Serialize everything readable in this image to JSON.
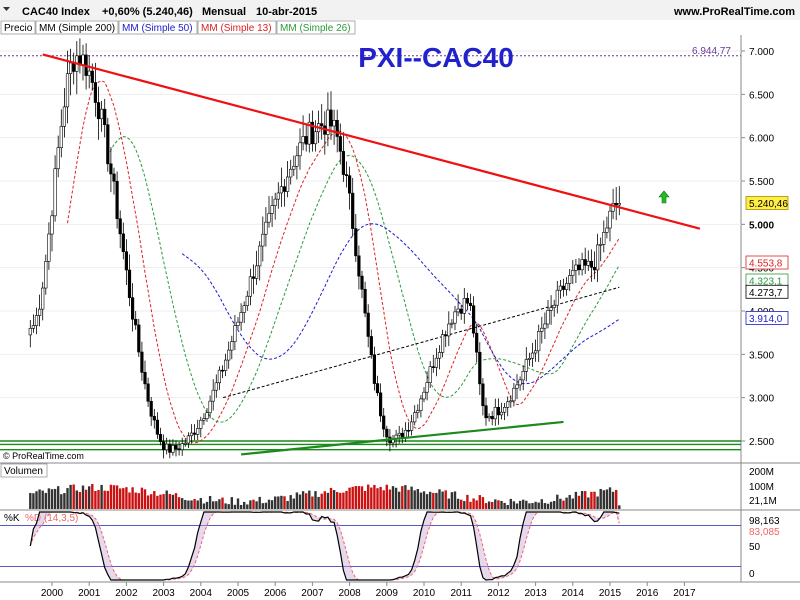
{
  "header": {
    "symbol": "CAC40 Index",
    "change": "+0,60% (5.240,46)",
    "period": "Mensual",
    "date": "10-abr-2015",
    "website": "www.ProRealTime.com",
    "watermark": "PXI--CAC40",
    "copyright": "© ProRealTime.com"
  },
  "legend": {
    "price": "Precio",
    "items": [
      {
        "label": "MM (Simple 200)",
        "color": "#000000"
      },
      {
        "label": "MM (Simple 50)",
        "color": "#1c1ccc"
      },
      {
        "label": "MM (Simple 13)",
        "color": "#dd2222"
      },
      {
        "label": "MM (Simple 26)",
        "color": "#2a9a3a"
      }
    ]
  },
  "colors": {
    "up": "#2a7a2a",
    "down": "#d01010",
    "ma200": "#000000",
    "ma50": "#1c1ccc",
    "ma13": "#dd2222",
    "ma26": "#2a9a3a",
    "trendline": "#ee1111",
    "support": "#1a8a1a",
    "watermark": "#2222cc"
  },
  "chart_data": [
    {
      "type": "candlestick",
      "title": "PXI--CAC40",
      "x_ticks": [
        "2000",
        "2001",
        "2002",
        "2003",
        "2004",
        "2005",
        "2006",
        "2007",
        "2008",
        "2009",
        "2010",
        "2011",
        "2012",
        "2013",
        "2014",
        "2015",
        "2016",
        "2017"
      ],
      "y_ticks": [
        "7.000",
        "6.500",
        "6.000",
        "5.500",
        "5.000",
        "4.500",
        "4.000",
        "3.500",
        "3.000",
        "2.500"
      ],
      "ylim": [
        2400,
        7200
      ],
      "key_points": [
        {
          "date": "1999-06",
          "close": 3800
        },
        {
          "date": "2000-09",
          "close": 6944.77
        },
        {
          "date": "2003-03",
          "close": 2400
        },
        {
          "date": "2007-06",
          "close": 6168
        },
        {
          "date": "2009-03",
          "close": 2519
        },
        {
          "date": "2011-03",
          "close": 4100
        },
        {
          "date": "2011-09",
          "close": 2800
        },
        {
          "date": "2014-06",
          "close": 4500
        },
        {
          "date": "2015-04",
          "close": 5240.46
        }
      ],
      "moving_averages": [
        {
          "name": "MM (Simple 200)",
          "value": 4273.7
        },
        {
          "name": "MM (Simple 50)",
          "value": 3914.0
        },
        {
          "name": "MM (Simple 13)",
          "value": 4553.8
        },
        {
          "name": "MM (Simple 26)",
          "value": 4323.1
        }
      ],
      "price_labels": [
        {
          "text": "6.944,77",
          "value": 6944.77
        },
        {
          "text": "5.240,46",
          "value": 5240.46
        },
        {
          "text": "4.553,8",
          "value": 4553.8
        },
        {
          "text": "4.323,1",
          "value": 4323.1
        },
        {
          "text": "4.273,7",
          "value": 4273.7
        },
        {
          "text": "3.914,0",
          "value": 3914.0
        }
      ],
      "trendline": {
        "from": {
          "date": "1999-10",
          "value": 6960
        },
        "to": {
          "date": "2017-06",
          "value": 4950
        }
      },
      "support_line": {
        "from": {
          "date": "2005-02",
          "value": 2345
        },
        "to": {
          "date": "2013-10",
          "value": 2720
        }
      },
      "horizontal_levels": [
        6944.77,
        2500,
        2460,
        2400
      ]
    },
    {
      "type": "bar",
      "title": "Volumen",
      "y_ticks": [
        "200M",
        "100M"
      ],
      "last_value": "21,1M",
      "ylim": [
        0,
        250
      ]
    },
    {
      "type": "line",
      "title": "%K",
      "series": [
        {
          "name": "%K"
        },
        {
          "name": "%D (14,3,5)"
        }
      ],
      "last_values": {
        "k": "98,163",
        "d": "83,085"
      },
      "y_ticks": [
        "50",
        "0"
      ],
      "levels": [
        80,
        20
      ],
      "ylim": [
        0,
        100
      ]
    }
  ]
}
